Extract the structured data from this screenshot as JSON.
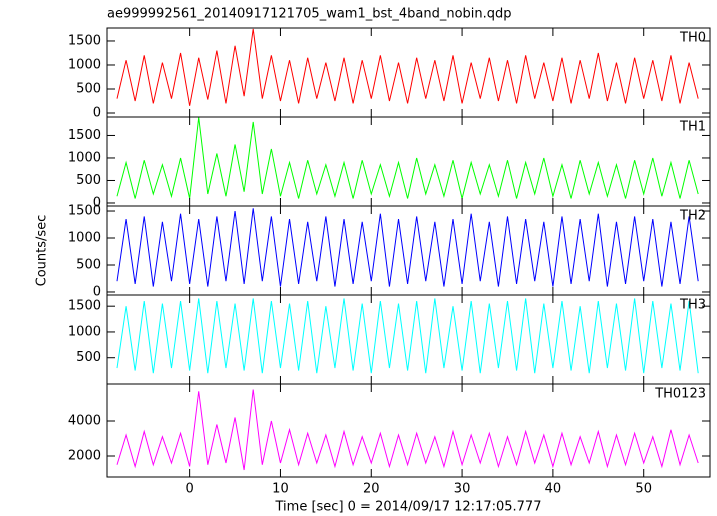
{
  "chart_data": [
    {
      "type": "line",
      "title": "ae999992561_20140917121705_wam1_bst_4band_nobin.qdp",
      "x": [
        -8,
        -7,
        -6,
        -5,
        -4,
        -3,
        -2,
        -1,
        0,
        1,
        2,
        3,
        4,
        5,
        6,
        7,
        8,
        9,
        10,
        11,
        12,
        13,
        14,
        15,
        16,
        17,
        18,
        19,
        20,
        21,
        22,
        23,
        24,
        25,
        26,
        27,
        28,
        29,
        30,
        31,
        32,
        33,
        34,
        35,
        36,
        37,
        38,
        39,
        40,
        41,
        42,
        43,
        44,
        45,
        46,
        47,
        48,
        49,
        50,
        51,
        52,
        53,
        54,
        55,
        56
      ],
      "series": [
        {
          "name": "TH0",
          "color": "#ff0000",
          "values": [
            300,
            1100,
            250,
            1200,
            200,
            1050,
            300,
            1250,
            150,
            1150,
            280,
            1300,
            200,
            1400,
            350,
            1750,
            300,
            1200,
            250,
            1100,
            200,
            1150,
            300,
            1050,
            250,
            1150,
            200,
            1100,
            300,
            1200,
            250,
            1050,
            200,
            1150,
            300,
            1100,
            250,
            1200,
            200,
            1050,
            300,
            1150,
            250,
            1100,
            200,
            1200,
            300,
            1050,
            250,
            1150,
            200,
            1100,
            300,
            1250,
            250,
            1050,
            200,
            1150,
            300,
            1100,
            250,
            1200,
            200,
            1050,
            300
          ]
        }
      ],
      "xlim": [
        -9.1,
        57.3
      ],
      "xticks": [
        0,
        10,
        20,
        30,
        40,
        50
      ],
      "ylim": [
        -83,
        1770
      ],
      "yticks": [
        0,
        500,
        1000,
        1500
      ]
    },
    {
      "type": "line",
      "x": [
        -8,
        -7,
        -6,
        -5,
        -4,
        -3,
        -2,
        -1,
        0,
        1,
        2,
        3,
        4,
        5,
        6,
        7,
        8,
        9,
        10,
        11,
        12,
        13,
        14,
        15,
        16,
        17,
        18,
        19,
        20,
        21,
        22,
        23,
        24,
        25,
        26,
        27,
        28,
        29,
        30,
        31,
        32,
        33,
        34,
        35,
        36,
        37,
        38,
        39,
        40,
        41,
        42,
        43,
        44,
        45,
        46,
        47,
        48,
        49,
        50,
        51,
        52,
        53,
        54,
        55,
        56
      ],
      "series": [
        {
          "name": "TH1",
          "color": "#00ff00",
          "values": [
            150,
            900,
            100,
            950,
            200,
            850,
            150,
            1000,
            100,
            1900,
            200,
            1100,
            150,
            1300,
            250,
            1800,
            200,
            1200,
            150,
            900,
            100,
            950,
            200,
            850,
            150,
            900,
            100,
            950,
            200,
            850,
            150,
            900,
            100,
            1000,
            200,
            850,
            150,
            950,
            100,
            900,
            200,
            850,
            150,
            950,
            100,
            900,
            200,
            1000,
            150,
            850,
            100,
            950,
            200,
            900,
            150,
            850,
            100,
            950,
            200,
            1000,
            150,
            900,
            100,
            950,
            200
          ]
        }
      ],
      "xlim": [
        -9.1,
        57.3
      ],
      "xticks": [
        0,
        10,
        20,
        30,
        40,
        50
      ],
      "ylim": [
        -67,
        1910
      ],
      "yticks": [
        0,
        500,
        1000,
        1500
      ]
    },
    {
      "type": "line",
      "ylabel": "Counts/sec",
      "x": [
        -8,
        -7,
        -6,
        -5,
        -4,
        -3,
        -2,
        -1,
        0,
        1,
        2,
        3,
        4,
        5,
        6,
        7,
        8,
        9,
        10,
        11,
        12,
        13,
        14,
        15,
        16,
        17,
        18,
        19,
        20,
        21,
        22,
        23,
        24,
        25,
        26,
        27,
        28,
        29,
        30,
        31,
        32,
        33,
        34,
        35,
        36,
        37,
        38,
        39,
        40,
        41,
        42,
        43,
        44,
        45,
        46,
        47,
        48,
        49,
        50,
        51,
        52,
        53,
        54,
        55,
        56
      ],
      "series": [
        {
          "name": "TH2",
          "color": "#0000ff",
          "values": [
            200,
            1350,
            150,
            1400,
            100,
            1300,
            200,
            1450,
            150,
            1350,
            100,
            1400,
            200,
            1500,
            150,
            1550,
            200,
            1400,
            100,
            1350,
            150,
            1300,
            200,
            1400,
            100,
            1350,
            150,
            1300,
            200,
            1450,
            100,
            1350,
            150,
            1400,
            200,
            1300,
            100,
            1350,
            150,
            1450,
            200,
            1300,
            100,
            1400,
            150,
            1350,
            200,
            1300,
            100,
            1400,
            150,
            1350,
            200,
            1450,
            100,
            1300,
            150,
            1400,
            200,
            1350,
            100,
            1300,
            150,
            1400,
            200
          ]
        }
      ],
      "xlim": [
        -9.1,
        57.3
      ],
      "xticks": [
        0,
        10,
        20,
        30,
        40,
        50
      ],
      "ylim": [
        -56,
        1593
      ],
      "yticks": [
        0,
        500,
        1000,
        1500
      ]
    },
    {
      "type": "line",
      "x": [
        -8,
        -7,
        -6,
        -5,
        -4,
        -3,
        -2,
        -1,
        0,
        1,
        2,
        3,
        4,
        5,
        6,
        7,
        8,
        9,
        10,
        11,
        12,
        13,
        14,
        15,
        16,
        17,
        18,
        19,
        20,
        21,
        22,
        23,
        24,
        25,
        26,
        27,
        28,
        29,
        30,
        31,
        32,
        33,
        34,
        35,
        36,
        37,
        38,
        39,
        40,
        41,
        42,
        43,
        44,
        45,
        46,
        47,
        48,
        49,
        50,
        51,
        52,
        53,
        54,
        55,
        56
      ],
      "series": [
        {
          "name": "TH3",
          "color": "#00ffff",
          "values": [
            300,
            1500,
            250,
            1600,
            200,
            1550,
            300,
            1600,
            250,
            1650,
            200,
            1600,
            300,
            1550,
            250,
            1650,
            200,
            1600,
            300,
            1550,
            250,
            1600,
            200,
            1500,
            300,
            1650,
            250,
            1550,
            200,
            1600,
            300,
            1550,
            250,
            1600,
            200,
            1650,
            300,
            1500,
            250,
            1600,
            200,
            1550,
            300,
            1600,
            250,
            1650,
            200,
            1550,
            300,
            1600,
            250,
            1500,
            200,
            1600,
            300,
            1550,
            250,
            1650,
            200,
            1600,
            300,
            1550,
            250,
            1600,
            200
          ]
        }
      ],
      "xlim": [
        -9.1,
        57.3
      ],
      "xticks": [
        0,
        10,
        20,
        30,
        40,
        50
      ],
      "ylim": [
        -10,
        1717
      ],
      "yticks": [
        500,
        1000,
        1500
      ]
    },
    {
      "type": "line",
      "xlabel": "Time [sec] 0 = 2014/09/17 12:17:05.777",
      "x": [
        -8,
        -7,
        -6,
        -5,
        -4,
        -3,
        -2,
        -1,
        0,
        1,
        2,
        3,
        4,
        5,
        6,
        7,
        8,
        9,
        10,
        11,
        12,
        13,
        14,
        15,
        16,
        17,
        18,
        19,
        20,
        21,
        22,
        23,
        24,
        25,
        26,
        27,
        28,
        29,
        30,
        31,
        32,
        33,
        34,
        35,
        36,
        37,
        38,
        39,
        40,
        41,
        42,
        43,
        44,
        45,
        46,
        47,
        48,
        49,
        50,
        51,
        52,
        53,
        54,
        55,
        56
      ],
      "series": [
        {
          "name": "TH0123",
          "color": "#ff00ff",
          "values": [
            1500,
            3200,
            1400,
            3400,
            1500,
            3100,
            1600,
            3300,
            1400,
            5700,
            1500,
            3800,
            1600,
            4200,
            1200,
            5800,
            1500,
            4000,
            1600,
            3500,
            1500,
            3300,
            1600,
            3200,
            1400,
            3400,
            1500,
            3100,
            1600,
            3300,
            1400,
            3200,
            1500,
            3300,
            1600,
            3100,
            1400,
            3400,
            1500,
            3200,
            1600,
            3300,
            1400,
            3100,
            1500,
            3400,
            1600,
            3200,
            1400,
            3300,
            1500,
            3100,
            1600,
            3400,
            1400,
            3200,
            1500,
            3300,
            1600,
            3100,
            1400,
            3500,
            1500,
            3200,
            1600
          ]
        }
      ],
      "xlim": [
        -9.1,
        57.3
      ],
      "xticks": [
        0,
        10,
        20,
        30,
        40,
        50
      ],
      "ylim": [
        800,
        6114
      ],
      "yticks": [
        2000,
        4000
      ]
    }
  ]
}
